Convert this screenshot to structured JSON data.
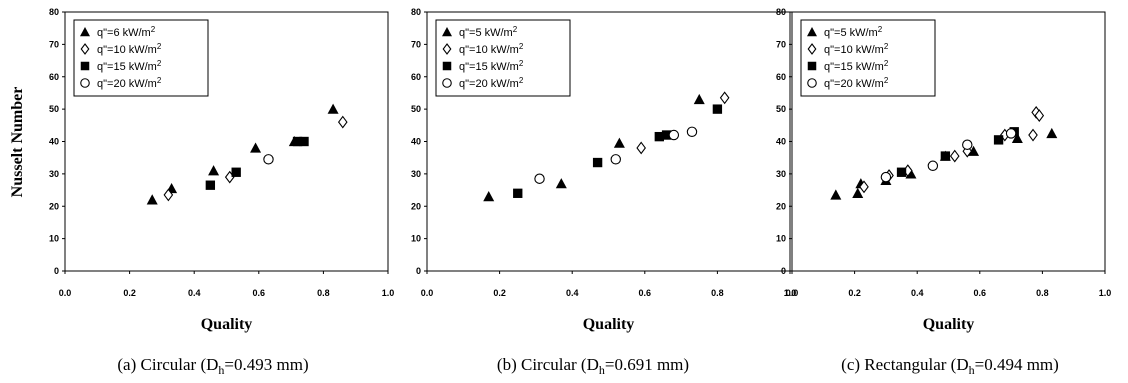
{
  "ylabel": "Nusselt Number",
  "chart_data": [
    {
      "type": "scatter",
      "caption": {
        "prefix": "(a) Circular (D",
        "sub": "h",
        "suffix": "=0.493 mm)"
      },
      "xlabel": "Quality",
      "xlim": [
        0,
        1
      ],
      "ylim": [
        0,
        80
      ],
      "xticks": [
        "0.0",
        "0.2",
        "0.4",
        "0.6",
        "0.8",
        "1.0"
      ],
      "yticks": [
        "0",
        "10",
        "20",
        "30",
        "40",
        "50",
        "60",
        "70",
        "80"
      ],
      "legend_position": "top-left",
      "series": [
        {
          "name": "q\"=6 kW/m",
          "name_sup": "2",
          "marker": "triangle",
          "points": [
            [
              0.27,
              22
            ],
            [
              0.33,
              25.5
            ],
            [
              0.46,
              31
            ],
            [
              0.59,
              38
            ],
            [
              0.71,
              40
            ],
            [
              0.83,
              50
            ]
          ]
        },
        {
          "name": "q\"=10 kW/m",
          "name_sup": "2",
          "marker": "diamond-open",
          "points": [
            [
              0.32,
              23.5
            ],
            [
              0.51,
              29
            ],
            [
              0.86,
              46
            ]
          ]
        },
        {
          "name": "q\"=15 kW/m",
          "name_sup": "2",
          "marker": "square",
          "points": [
            [
              0.45,
              26.5
            ],
            [
              0.53,
              30.5
            ],
            [
              0.72,
              40
            ],
            [
              0.74,
              40
            ]
          ]
        },
        {
          "name": "q\"=20 kW/m",
          "name_sup": "2",
          "marker": "circle-open",
          "points": [
            [
              0.63,
              34.5
            ]
          ]
        }
      ]
    },
    {
      "type": "scatter",
      "caption": {
        "prefix": "(b) Circular (D",
        "sub": "h",
        "suffix": "=0.691 mm)"
      },
      "xlabel": "Quality",
      "xlim": [
        0,
        1
      ],
      "ylim": [
        0,
        80
      ],
      "xticks": [
        "0.0",
        "0.2",
        "0.4",
        "0.6",
        "0.8",
        "1.0"
      ],
      "yticks": [
        "0",
        "10",
        "20",
        "30",
        "40",
        "50",
        "60",
        "70",
        "80"
      ],
      "legend_position": "top-left",
      "series": [
        {
          "name": "q\"=5 kW/m",
          "name_sup": "2",
          "marker": "triangle",
          "points": [
            [
              0.17,
              23
            ],
            [
              0.37,
              27
            ],
            [
              0.53,
              39.5
            ],
            [
              0.75,
              53
            ]
          ]
        },
        {
          "name": "q\"=10 kW/m",
          "name_sup": "2",
          "marker": "diamond-open",
          "points": [
            [
              0.59,
              38
            ],
            [
              0.82,
              53.5
            ]
          ]
        },
        {
          "name": "q\"=15 kW/m",
          "name_sup": "2",
          "marker": "square",
          "points": [
            [
              0.25,
              24
            ],
            [
              0.47,
              33.5
            ],
            [
              0.64,
              41.5
            ],
            [
              0.66,
              42
            ],
            [
              0.8,
              50
            ]
          ]
        },
        {
          "name": "q\"=20 kW/m",
          "name_sup": "2",
          "marker": "circle-open",
          "points": [
            [
              0.31,
              28.5
            ],
            [
              0.52,
              34.5
            ],
            [
              0.68,
              42
            ],
            [
              0.73,
              43
            ]
          ]
        }
      ]
    },
    {
      "type": "scatter",
      "caption": {
        "prefix": "(c) Rectangular (D",
        "sub": "h",
        "suffix": "=0.494 mm)"
      },
      "xlabel": "Quality",
      "xlim": [
        0,
        1
      ],
      "ylim": [
        0,
        80
      ],
      "xticks": [
        "0.0",
        "0.2",
        "0.4",
        "0.6",
        "0.8",
        "1.0"
      ],
      "yticks": [
        "0",
        "10",
        "20",
        "30",
        "40",
        "50",
        "60",
        "70",
        "80"
      ],
      "legend_position": "top-left",
      "series": [
        {
          "name": "q\"=5 kW/m",
          "name_sup": "2",
          "marker": "triangle",
          "points": [
            [
              0.14,
              23.5
            ],
            [
              0.21,
              24
            ],
            [
              0.22,
              27
            ],
            [
              0.3,
              28
            ],
            [
              0.38,
              30
            ],
            [
              0.49,
              35.5
            ],
            [
              0.58,
              37
            ],
            [
              0.72,
              41
            ],
            [
              0.83,
              42.5
            ]
          ]
        },
        {
          "name": "q\"=10 kW/m",
          "name_sup": "2",
          "marker": "diamond-open",
          "points": [
            [
              0.23,
              26
            ],
            [
              0.31,
              29.5
            ],
            [
              0.37,
              31
            ],
            [
              0.52,
              35.5
            ],
            [
              0.56,
              37
            ],
            [
              0.68,
              42
            ],
            [
              0.77,
              42
            ],
            [
              0.78,
              49
            ],
            [
              0.79,
              48
            ]
          ]
        },
        {
          "name": "q\"=15 kW/m",
          "name_sup": "2",
          "marker": "square",
          "points": [
            [
              0.35,
              30.5
            ],
            [
              0.49,
              35.5
            ],
            [
              0.66,
              40.5
            ],
            [
              0.71,
              43
            ]
          ]
        },
        {
          "name": "q\"=20 kW/m",
          "name_sup": "2",
          "marker": "circle-open",
          "points": [
            [
              0.3,
              29
            ],
            [
              0.45,
              32.5
            ],
            [
              0.56,
              39
            ],
            [
              0.7,
              42.5
            ]
          ]
        }
      ]
    }
  ]
}
